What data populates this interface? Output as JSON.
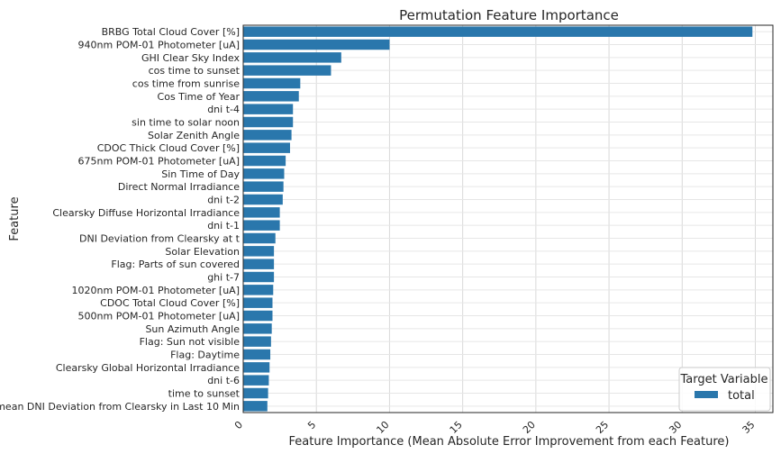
{
  "chart_data": {
    "type": "bar",
    "orientation": "horizontal",
    "title": "Permutation Feature Importance",
    "xlabel": "Feature Importance (Mean Absolute Error Improvement from each Feature)",
    "ylabel": "Feature",
    "xlim": [
      0,
      36.2
    ],
    "xticks": [
      0,
      5,
      10,
      15,
      20,
      25,
      30,
      35
    ],
    "grid": true,
    "legend": {
      "title": "Target Variable",
      "placement": "bottom-right"
    },
    "series": [
      {
        "name": "total",
        "color": "#2a77ac",
        "categories": [
          "BRBG Total Cloud Cover [%]",
          "940nm POM-01 Photometer [uA]",
          "GHI Clear Sky Index",
          "cos time to sunset",
          "cos time from sunrise",
          "Cos Time of Year",
          "dni t-4",
          "sin time to solar noon",
          "Solar Zenith Angle",
          "CDOC Thick Cloud Cover [%]",
          "675nm POM-01 Photometer [uA]",
          "Sin Time of Day",
          "Direct Normal Irradiance",
          "dni t-2",
          "Clearsky Diffuse Horizontal Irradiance",
          "dni t-1",
          "DNI Deviation from Clearsky at t",
          "Solar Elevation",
          "Flag: Parts of sun covered",
          "ghi t-7",
          "1020nm POM-01 Photometer [uA]",
          "CDOC Total Cloud Cover [%]",
          "500nm POM-01 Photometer [uA]",
          "Sun Azimuth Angle",
          "Flag: Sun not visible",
          "Flag: Daytime",
          "Clearsky Global Horizontal Irradiance",
          "dni t-6",
          "time to sunset",
          "mean DNI Deviation from Clearsky in Last 10 Min"
        ],
        "values": [
          34.8,
          10.0,
          6.7,
          6.0,
          3.9,
          3.8,
          3.4,
          3.4,
          3.3,
          3.2,
          2.9,
          2.8,
          2.75,
          2.7,
          2.5,
          2.5,
          2.2,
          2.1,
          2.1,
          2.1,
          2.05,
          2.0,
          2.0,
          1.95,
          1.9,
          1.85,
          1.8,
          1.75,
          1.7,
          1.65
        ]
      }
    ]
  }
}
